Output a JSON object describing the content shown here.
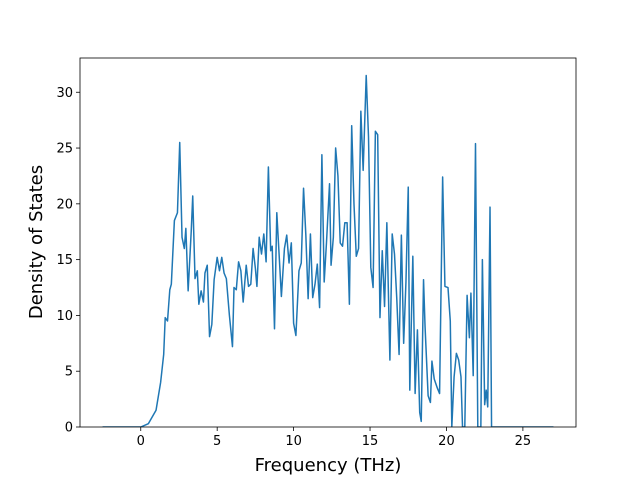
{
  "chart_data": {
    "type": "line",
    "xlabel": "Frequency (THz)",
    "ylabel": "Density of States",
    "color": "#1f77b4",
    "xlim": [
      -3.975,
      28.475
    ],
    "ylim": [
      0,
      33.07
    ],
    "xticks": [
      0,
      5,
      10,
      15,
      20,
      25
    ],
    "yticks": [
      0,
      5,
      10,
      15,
      20,
      25,
      30
    ],
    "x": [
      -2.5,
      0,
      0.5,
      1,
      1.3,
      1.5,
      1.6,
      1.75,
      1.9,
      2.0,
      2.2,
      2.4,
      2.55,
      2.7,
      2.85,
      2.95,
      3.1,
      3.3,
      3.4,
      3.55,
      3.7,
      3.8,
      3.95,
      4.1,
      4.2,
      4.35,
      4.5,
      4.65,
      4.8,
      5.0,
      5.15,
      5.3,
      5.45,
      5.6,
      5.8,
      6.0,
      6.1,
      6.25,
      6.4,
      6.55,
      6.7,
      6.9,
      7.05,
      7.2,
      7.35,
      7.5,
      7.6,
      7.75,
      7.9,
      8.05,
      8.2,
      8.35,
      8.5,
      8.6,
      8.75,
      8.9,
      9.05,
      9.2,
      9.4,
      9.55,
      9.7,
      9.85,
      10.0,
      10.15,
      10.35,
      10.5,
      10.65,
      10.8,
      10.95,
      11.1,
      11.25,
      11.4,
      11.55,
      11.7,
      11.85,
      12.0,
      12.15,
      12.35,
      12.45,
      12.6,
      12.75,
      12.9,
      13.05,
      13.2,
      13.35,
      13.5,
      13.65,
      13.8,
      13.95,
      14.1,
      14.25,
      14.4,
      14.55,
      14.75,
      14.9,
      15.05,
      15.2,
      15.35,
      15.5,
      15.65,
      15.8,
      15.95,
      16.1,
      16.3,
      16.45,
      16.6,
      16.75,
      16.9,
      17.05,
      17.2,
      17.35,
      17.5,
      17.6,
      17.8,
      17.95,
      18.1,
      18.25,
      18.35,
      18.5,
      18.6,
      18.8,
      18.95,
      19.05,
      19.2,
      19.4,
      19.55,
      19.75,
      19.9,
      20.1,
      20.25,
      20.35,
      20.5,
      20.65,
      20.8,
      20.95,
      21.05,
      21.2,
      21.35,
      21.5,
      21.6,
      21.75,
      21.9,
      22.05,
      22.25,
      22.35,
      22.5,
      22.6,
      22.7,
      22.85,
      22.95,
      23.5,
      27
    ],
    "values": [
      0,
      0,
      0.3,
      1.5,
      4,
      6.5,
      9.8,
      9.5,
      12.3,
      12.8,
      18.5,
      19.2,
      25.5,
      17,
      16,
      17.8,
      12.2,
      17.5,
      20.7,
      13.3,
      14,
      11,
      12.2,
      11.2,
      13.8,
      14.5,
      8.1,
      9.2,
      13.2,
      15.2,
      14,
      15.2,
      13.8,
      13.3,
      10,
      7.2,
      12.5,
      12.3,
      14.8,
      14,
      11.2,
      14.5,
      12.6,
      12.8,
      16,
      14.2,
      12.6,
      17,
      15.5,
      17.3,
      14.8,
      23.3,
      15.8,
      16.2,
      8.8,
      19.2,
      15.5,
      11.7,
      16,
      17.2,
      14.7,
      16.5,
      9.3,
      8.2,
      14,
      14.7,
      21.4,
      17.2,
      11.5,
      17.3,
      11.6,
      12.8,
      14.6,
      10.7,
      24.4,
      13,
      16.5,
      21.8,
      14.5,
      17,
      25,
      22.5,
      16.5,
      16.2,
      18.3,
      18.3,
      11,
      27,
      20,
      15.3,
      16,
      28.3,
      23,
      31.5,
      26,
      14.3,
      12.5,
      26.5,
      26.2,
      9.8,
      15.8,
      10.8,
      18.3,
      6,
      17.3,
      15.5,
      11.5,
      6.5,
      17.2,
      7.5,
      13,
      21.5,
      3.3,
      15.3,
      3,
      8.7,
      1.3,
      0.5,
      13.2,
      9,
      2.8,
      2.2,
      5.9,
      4.3,
      3.5,
      3,
      22.4,
      12.6,
      12.5,
      9.5,
      0,
      4.5,
      6.6,
      6,
      4.5,
      0,
      0,
      11.8,
      8,
      12,
      4.6,
      25.4,
      0,
      0,
      15,
      2,
      3.3,
      1.8,
      19.7,
      0,
      0,
      0
    ]
  }
}
